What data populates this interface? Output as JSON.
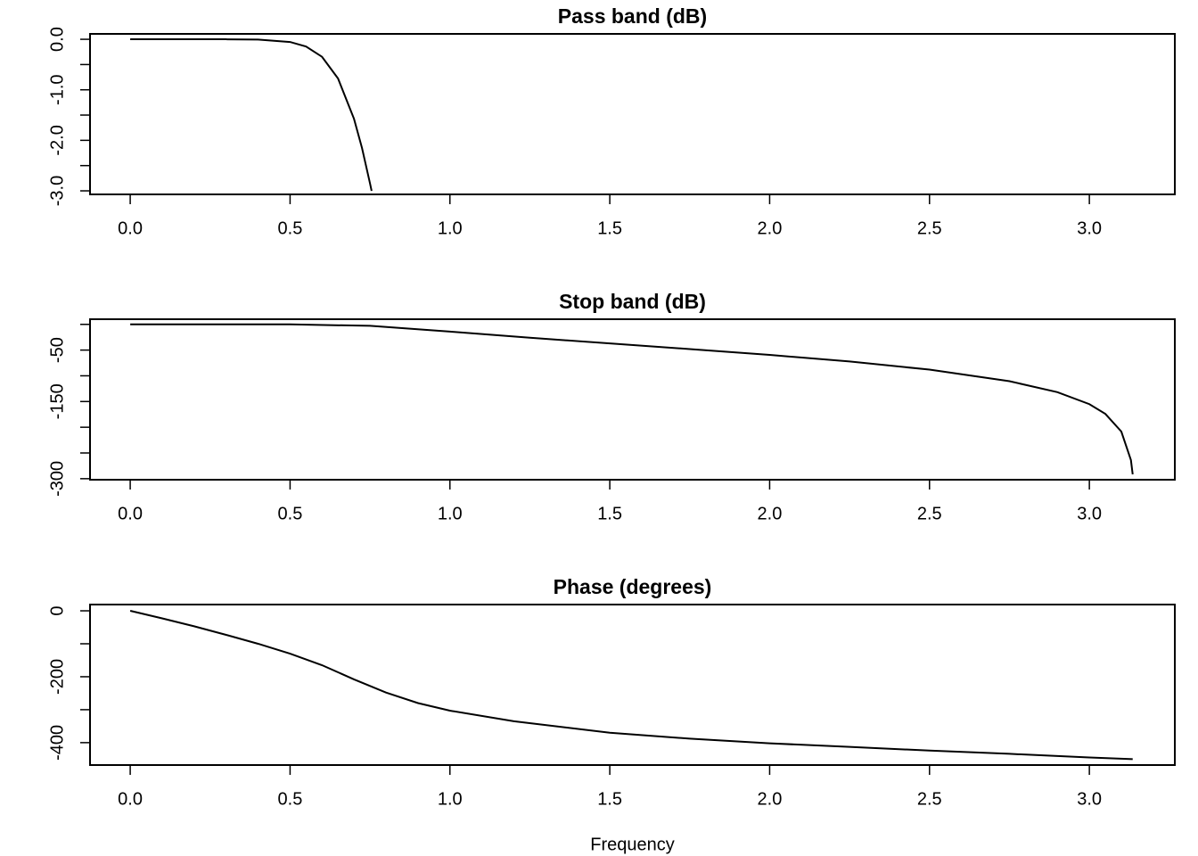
{
  "chart_data": [
    {
      "type": "line",
      "title": "Pass band (dB)",
      "x": [
        0,
        0.1,
        0.2,
        0.3,
        0.4,
        0.5,
        0.55,
        0.6,
        0.65,
        0.7,
        0.725,
        0.75,
        0.755
      ],
      "values": [
        0,
        0,
        0,
        0,
        -0.005,
        -0.053,
        -0.143,
        -0.347,
        -0.776,
        -1.575,
        -2.152,
        -2.853,
        -3.0
      ],
      "color": "#000000",
      "xlim": [
        -0.1257,
        3.2673
      ],
      "xticks": [
        {
          "value": 0,
          "label": "0.0"
        },
        {
          "value": 0.5,
          "label": "0.5"
        },
        {
          "value": 1,
          "label": "1.0"
        },
        {
          "value": 1.5,
          "label": "1.5"
        },
        {
          "value": 2,
          "label": "2.0"
        },
        {
          "value": 2.5,
          "label": "2.5"
        },
        {
          "value": 3,
          "label": "3.0"
        }
      ],
      "ylim": [
        -3.07,
        0.107
      ],
      "yticks": [
        {
          "value": 0,
          "label": "0.0"
        },
        {
          "value": -1,
          "label": "-1.0"
        },
        {
          "value": -2,
          "label": "-2.0"
        },
        {
          "value": -3,
          "label": "-3.0"
        }
      ],
      "yminor_ticks": [
        -0.5,
        -1.5,
        -2.5
      ]
    },
    {
      "type": "line",
      "title": "Stop band (dB)",
      "x": [
        0,
        0.25,
        0.5,
        0.75,
        1,
        1.25,
        1.5,
        1.75,
        2,
        2.25,
        2.5,
        2.75,
        2.9,
        3,
        3.05,
        3.1,
        3.13,
        3.1355
      ],
      "values": [
        0,
        0,
        -0.053,
        -2.85,
        -14.09,
        -26.0,
        -37.1,
        -48.0,
        -59.4,
        -72.2,
        -88.0,
        -110.5,
        -131.8,
        -155.1,
        -174.0,
        -208.4,
        -263.8,
        -291.5
      ],
      "color": "#000000",
      "xlim": [
        -0.1257,
        3.2673
      ],
      "xticks": [
        {
          "value": 0,
          "label": "0.0"
        },
        {
          "value": 0.5,
          "label": "0.5"
        },
        {
          "value": 1,
          "label": "1.0"
        },
        {
          "value": 1.5,
          "label": "1.5"
        },
        {
          "value": 2,
          "label": "2.0"
        },
        {
          "value": 2.5,
          "label": "2.5"
        },
        {
          "value": 3,
          "label": "3.0"
        }
      ],
      "ylim": [
        -302,
        10
      ],
      "yticks": [
        -50,
        -150,
        -300
      ],
      "yminor_ticks": [
        0,
        -100,
        -200,
        -250
      ]
    },
    {
      "type": "line",
      "title": "Phase (degrees)",
      "x_label": "Frequency",
      "x": [
        0,
        0.1,
        0.2,
        0.3,
        0.4,
        0.5,
        0.6,
        0.7,
        0.8,
        0.9,
        1,
        1.2,
        1.5,
        1.75,
        2,
        2.25,
        2.5,
        2.75,
        3,
        3.1355
      ],
      "values": [
        0,
        -23,
        -47,
        -73,
        -100,
        -130,
        -165,
        -208,
        -248,
        -280,
        -303,
        -335,
        -370,
        -388,
        -402,
        -413,
        -424,
        -434,
        -445,
        -450
      ],
      "color": "#000000",
      "xlim": [
        -0.1257,
        3.2673
      ],
      "xticks": [
        {
          "value": 0,
          "label": "0.0"
        },
        {
          "value": 0.5,
          "label": "0.5"
        },
        {
          "value": 1,
          "label": "1.0"
        },
        {
          "value": 1.5,
          "label": "1.5"
        },
        {
          "value": 2,
          "label": "2.0"
        },
        {
          "value": 2.5,
          "label": "2.5"
        },
        {
          "value": 3,
          "label": "3.0"
        }
      ],
      "ylim": [
        -468,
        19
      ],
      "yticks": [
        0,
        -200,
        -400
      ],
      "yminor_ticks": [
        -100,
        -300
      ]
    }
  ]
}
